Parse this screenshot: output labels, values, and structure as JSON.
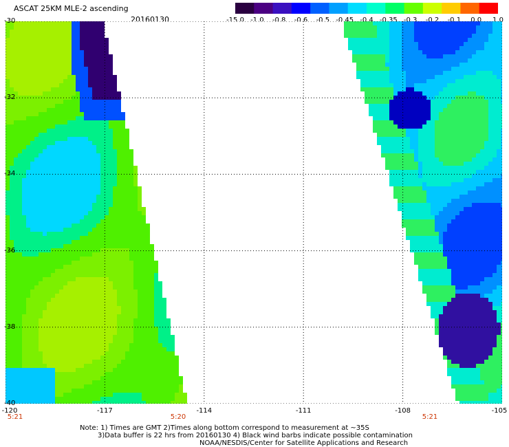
{
  "header": {
    "title": "ASCAT 25KM MLE-2 ascending",
    "date": "20160130"
  },
  "colorbar": {
    "ticks": [
      "-15.0",
      "-1.0",
      "-0.8",
      "-0.6",
      "-0.5",
      "-0.45",
      "-0.4",
      "-0.35",
      "-0.3",
      "-0.2",
      "-0.1",
      "0.0",
      "1.0"
    ],
    "colors": [
      "#2a0040",
      "#4b0082",
      "#3a10c0",
      "#0000ff",
      "#0060ff",
      "#00a0ff",
      "#00ddff",
      "#00ffcc",
      "#00ff66",
      "#66ff00",
      "#ccff00",
      "#ffcc00",
      "#ff6600",
      "#ff0000"
    ]
  },
  "axes": {
    "lat_labels": [
      "-30",
      "-32",
      "-34",
      "-36",
      "-38",
      "-40"
    ],
    "lon_labels": [
      "-120",
      "-117",
      "-114",
      "-111",
      "-108",
      "-105"
    ],
    "lat_range": [
      -40,
      -30
    ],
    "lon_range": [
      -120,
      -105
    ]
  },
  "time_labels": [
    "5:21",
    "5:20",
    "5:21"
  ],
  "notes": {
    "line1": "Note: 1) Times are GMT 2)Times along bottom correspond to measurement at ~35S",
    "line2": "3)Data buffer is 22 hrs from 20160130 4) Black wind barbs indicate possible contamination",
    "line3": "NOAA/NESDIS/Center for Satellite Applications and Research"
  }
}
